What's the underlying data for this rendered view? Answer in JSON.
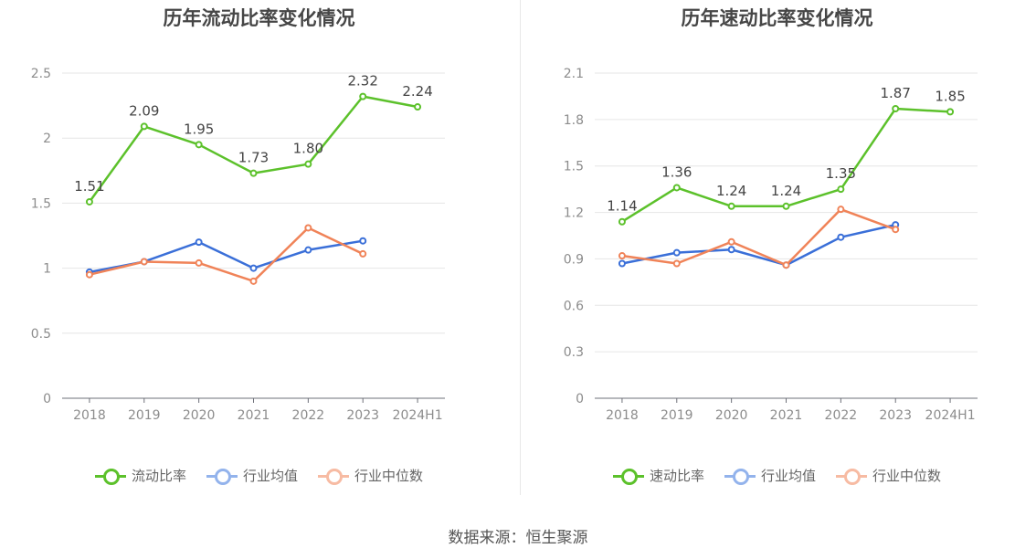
{
  "chart_data": [
    {
      "type": "line",
      "title": "历年流动比率变化情况",
      "categories": [
        "2018",
        "2019",
        "2020",
        "2021",
        "2022",
        "2023",
        "2024H1"
      ],
      "ylim": [
        0,
        2.5
      ],
      "yticks": [
        "0",
        "0.5",
        "1",
        "1.5",
        "2",
        "2.5"
      ],
      "grid": true,
      "legend_position": "bottom",
      "series": [
        {
          "name": "流动比率",
          "color": "#5cc12b",
          "values": [
            1.51,
            2.09,
            1.95,
            1.73,
            1.8,
            2.32,
            2.24
          ],
          "labels": [
            "1.51",
            "2.09",
            "1.95",
            "1.73",
            "1.80",
            "2.32",
            "2.24"
          ]
        },
        {
          "name": "行业均值",
          "color": "#3a6fd8",
          "values": [
            0.97,
            1.05,
            1.2,
            1.0,
            1.14,
            1.21,
            null
          ]
        },
        {
          "name": "行业中位数",
          "color": "#f08358",
          "values": [
            0.95,
            1.05,
            1.04,
            0.9,
            1.31,
            1.11,
            null
          ]
        }
      ]
    },
    {
      "type": "line",
      "title": "历年速动比率变化情况",
      "categories": [
        "2018",
        "2019",
        "2020",
        "2021",
        "2022",
        "2023",
        "2024H1"
      ],
      "ylim": [
        0,
        2.1
      ],
      "yticks": [
        "0",
        "0.3",
        "0.6",
        "0.9",
        "1.2",
        "1.5",
        "1.8",
        "2.1"
      ],
      "grid": true,
      "legend_position": "bottom",
      "series": [
        {
          "name": "速动比率",
          "color": "#5cc12b",
          "values": [
            1.14,
            1.36,
            1.24,
            1.24,
            1.35,
            1.87,
            1.85
          ],
          "labels": [
            "1.14",
            "1.36",
            "1.24",
            "1.24",
            "1.35",
            "1.87",
            "1.85"
          ]
        },
        {
          "name": "行业均值",
          "color": "#3a6fd8",
          "values": [
            0.87,
            0.94,
            0.96,
            0.86,
            1.04,
            1.12,
            null
          ]
        },
        {
          "name": "行业中位数",
          "color": "#f08358",
          "values": [
            0.92,
            0.87,
            1.01,
            0.86,
            1.22,
            1.09,
            null
          ]
        }
      ]
    }
  ],
  "source": "数据来源：恒生聚源"
}
